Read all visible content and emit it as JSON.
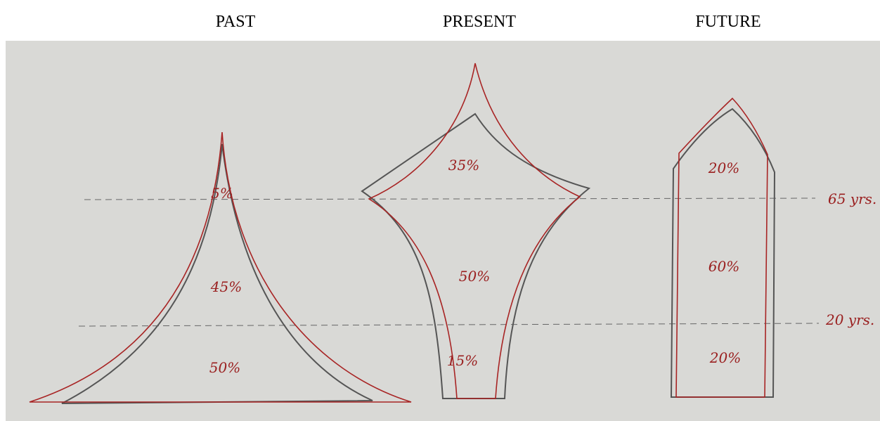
{
  "columns": [
    {
      "title": "PAST",
      "segments": [
        "5%",
        "45%",
        "50%"
      ]
    },
    {
      "title": "PRESENT",
      "segments": [
        "35%",
        "50%",
        "15%"
      ]
    },
    {
      "title": "FUTURE",
      "segments": [
        "20%",
        "60%",
        "20%"
      ]
    }
  ],
  "age_lines": [
    {
      "label": "65 yrs."
    },
    {
      "label": "20 yrs."
    }
  ]
}
